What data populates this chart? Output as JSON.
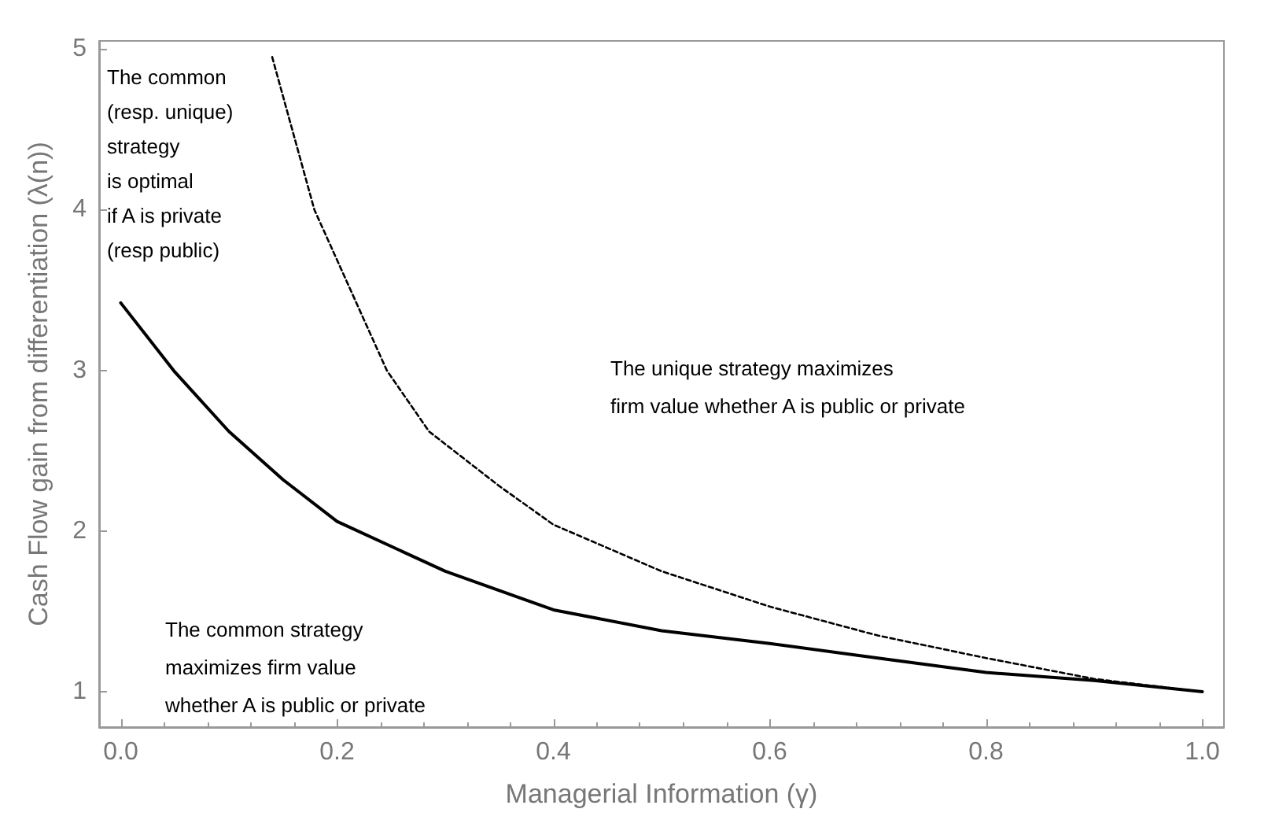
{
  "chart_data": {
    "type": "line",
    "xlabel": "Managerial Information (γ)",
    "ylabel": "Cash Flow gain from differentiation (λ(n))",
    "xlim": [
      -0.02,
      1.02
    ],
    "ylim": [
      0.78,
      5.05
    ],
    "xticks": [
      {
        "value": 0,
        "label": "0.0"
      },
      0.2,
      0.4,
      0.6,
      0.8,
      {
        "value": 1,
        "label": "1.0"
      }
    ],
    "yticks": [
      1,
      2,
      3,
      4,
      5
    ],
    "grid": false,
    "marker": "none",
    "series": [
      {
        "color": "#000000",
        "line_style": "solid",
        "x": [
          0,
          0.05,
          0.1,
          0.15,
          0.2,
          0.3,
          0.4,
          0.5,
          0.6,
          0.7,
          0.8,
          0.9,
          1.0
        ],
        "values": [
          3.42,
          2.99,
          2.62,
          2.32,
          2.06,
          1.75,
          1.51,
          1.38,
          1.3,
          1.21,
          1.12,
          1.07,
          1.0
        ]
      },
      {
        "color": "#000000",
        "line_style": "dashed",
        "x": [
          0.14,
          0.179,
          0.246,
          0.285,
          0.35,
          0.4,
          0.5,
          0.6,
          0.7,
          0.8,
          0.9,
          1.0
        ],
        "values": [
          4.95,
          4.0,
          3.0,
          2.62,
          2.28,
          2.04,
          1.75,
          1.53,
          1.35,
          1.21,
          1.08,
          1.0
        ]
      }
    ],
    "annotations": [
      "The common\n(resp. unique)\nstrategy\nis optimal\nif A is private\n(resp public)",
      "The unique strategy maximizes\nfirm value whether A is public or private",
      "The common strategy\nmaximizes firm value\nwhether A is public or private"
    ]
  }
}
